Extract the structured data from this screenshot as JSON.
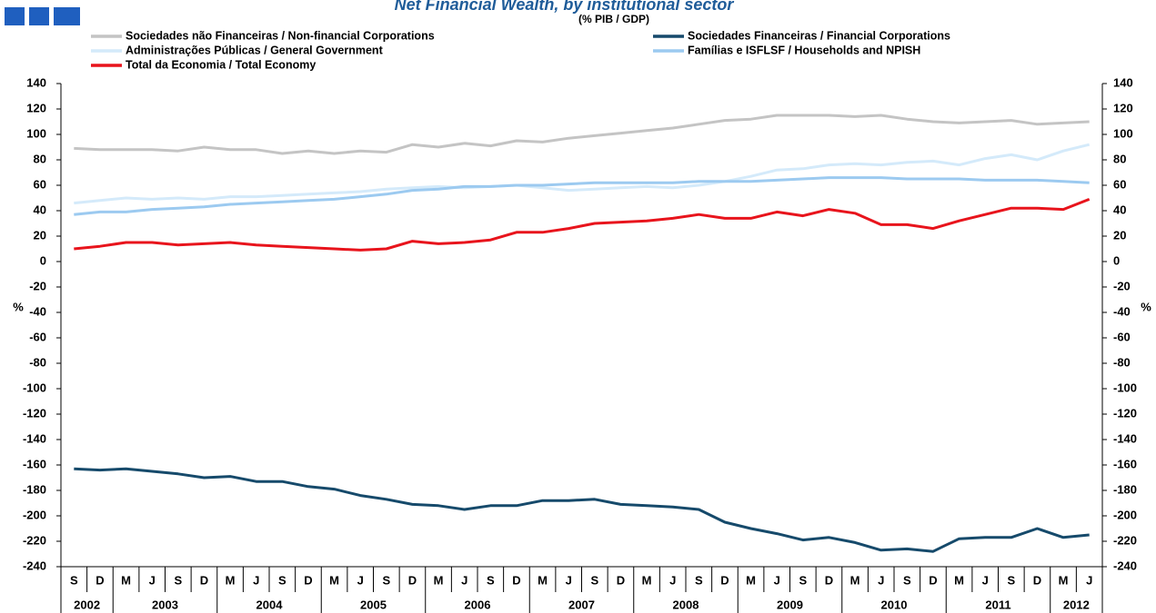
{
  "chart_data": {
    "type": "line",
    "title": "Net Financial Wealth, by institutional sector",
    "subtitle": "(% PIB / GDP)",
    "y_label": "%",
    "y2_label": "%",
    "categories": [
      "S",
      "D",
      "M",
      "J",
      "S",
      "D",
      "M",
      "J",
      "S",
      "D",
      "M",
      "J",
      "S",
      "D",
      "M",
      "J",
      "S",
      "D",
      "M",
      "J",
      "S",
      "D",
      "M",
      "J",
      "S",
      "D",
      "M",
      "J",
      "S",
      "D",
      "M",
      "J",
      "S",
      "D",
      "M",
      "J",
      "S",
      "D",
      "M",
      "J"
    ],
    "category_years": [
      "2002",
      null,
      "2003",
      null,
      null,
      null,
      "2004",
      null,
      null,
      null,
      "2005",
      null,
      null,
      null,
      "2006",
      null,
      null,
      null,
      "2007",
      null,
      null,
      null,
      "2008",
      null,
      null,
      null,
      "2009",
      null,
      null,
      null,
      "2010",
      null,
      null,
      null,
      "2011",
      null,
      null,
      null,
      "2012",
      null
    ],
    "ylim": [
      -240,
      140
    ],
    "yticks": [
      -240,
      -220,
      -200,
      -180,
      -160,
      -140,
      -120,
      -100,
      -80,
      -60,
      -40,
      -20,
      0,
      20,
      40,
      60,
      80,
      100,
      120,
      140
    ],
    "y2lim": [
      -240,
      140
    ],
    "y2ticks": [
      -240,
      -220,
      -200,
      -180,
      -160,
      -140,
      -120,
      -100,
      -80,
      -60,
      -40,
      -20,
      0,
      20,
      40,
      60,
      80,
      100,
      120,
      140
    ],
    "series": [
      {
        "name": "Sociedades não Financeiras / Non-financial Corporations",
        "color": "#c4c4c4",
        "values": [
          89,
          88,
          88,
          88,
          87,
          90,
          88,
          88,
          85,
          87,
          85,
          87,
          86,
          92,
          90,
          93,
          91,
          95,
          94,
          97,
          99,
          101,
          103,
          105,
          108,
          111,
          112,
          115,
          115,
          115,
          114,
          115,
          112,
          110,
          109,
          110,
          111,
          108,
          109,
          110
        ]
      },
      {
        "name": "Sociedades Financeiras / Financial Corporations",
        "color": "#164a6b",
        "values": [
          -163,
          -164,
          -163,
          -165,
          -167,
          -170,
          -169,
          -173,
          -173,
          -177,
          -179,
          -184,
          -187,
          -191,
          -192,
          -195,
          -192,
          -192,
          -188,
          -188,
          -187,
          -191,
          -192,
          -193,
          -195,
          -205,
          -210,
          -214,
          -219,
          -217,
          -221,
          -227,
          -226,
          -228,
          -218,
          -217,
          -217,
          -210,
          -217,
          -215
        ]
      },
      {
        "name": "Administrações Públicas / General Government",
        "color": "#d4eafa",
        "values": [
          46,
          48,
          50,
          49,
          50,
          49,
          51,
          51,
          52,
          53,
          54,
          55,
          57,
          58,
          59,
          58,
          59,
          60,
          58,
          56,
          57,
          58,
          59,
          58,
          60,
          63,
          67,
          72,
          73,
          76,
          77,
          76,
          78,
          79,
          76,
          81,
          84,
          80,
          87,
          92
        ]
      },
      {
        "name": "Famílias e ISFLSF / Households and NPISH",
        "color": "#9ccaf0",
        "values": [
          37,
          39,
          39,
          41,
          42,
          43,
          45,
          46,
          47,
          48,
          49,
          51,
          53,
          56,
          57,
          59,
          59,
          60,
          60,
          61,
          62,
          62,
          62,
          62,
          63,
          63,
          63,
          64,
          65,
          66,
          66,
          66,
          65,
          65,
          65,
          64,
          64,
          64,
          63,
          62
        ]
      },
      {
        "name": "Total da Economia / Total Economy",
        "color": "#e8141c",
        "values": [
          10,
          12,
          15,
          15,
          13,
          14,
          15,
          13,
          12,
          11,
          10,
          9,
          10,
          16,
          14,
          15,
          17,
          23,
          23,
          26,
          30,
          31,
          32,
          34,
          37,
          34,
          34,
          39,
          36,
          41,
          38,
          29,
          29,
          26,
          32,
          37,
          42,
          42,
          41,
          49
        ]
      }
    ]
  }
}
